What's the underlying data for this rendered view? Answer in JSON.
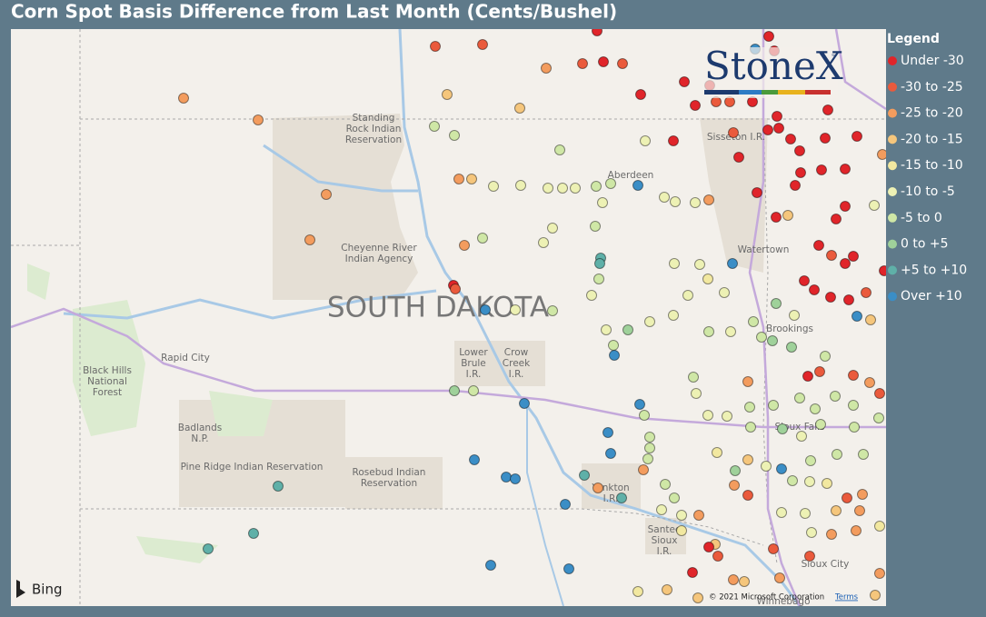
{
  "chart_data": {
    "type": "map",
    "title": "Corn Spot Basis Difference from Last Month (Cents/Bushel)",
    "logo": "StoneX",
    "logo_mark": "™",
    "attribution": "© 2021 Microsoft Corporation",
    "terms": "Terms",
    "provider": "Bing",
    "lon_range": [
      -104.78,
      -95.15
    ],
    "lat_range": [
      42.181,
      46.626
    ],
    "legend_title": "Legend",
    "classes": [
      {
        "name": "Under -30",
        "color": "#e0252a"
      },
      {
        "name": "-30 to -25",
        "color": "#ea5a3c"
      },
      {
        "name": "-25 to -20",
        "color": "#f39c5e"
      },
      {
        "name": "-20 to -15",
        "color": "#f5c67c"
      },
      {
        "name": "-15 to -10",
        "color": "#f2e8a0"
      },
      {
        "name": "-10 to -5",
        "color": "#edf1b4"
      },
      {
        "name": "-5 to 0",
        "color": "#cfe7a6"
      },
      {
        "name": "0 to +5",
        "color": "#9fd19a"
      },
      {
        "name": "+5 to +10",
        "color": "#5fb0a8"
      },
      {
        "name": "Over +10",
        "color": "#3b8ec6"
      }
    ],
    "places": [
      {
        "lines": [
          "Standing",
          "Rock Indian",
          "Reservation"
        ],
        "lon": -100.79,
        "lat": 45.856
      },
      {
        "lines": [
          "Sisseton I.R."
        ],
        "lon": -96.8,
        "lat": 45.793
      },
      {
        "lines": [
          "Aberdeen"
        ],
        "lon": -97.96,
        "lat": 45.499
      },
      {
        "lines": [
          "Cheyenne River",
          "Indian Agency"
        ],
        "lon": -100.73,
        "lat": 44.897
      },
      {
        "lines": [
          "Watertown"
        ],
        "lon": -96.5,
        "lat": 44.925
      },
      {
        "lines": [
          "Brookings"
        ],
        "lon": -96.21,
        "lat": 44.316
      },
      {
        "lines": [
          "Rapid City"
        ],
        "lon": -102.86,
        "lat": 44.092
      },
      {
        "lines": [
          "Black Hills",
          "National",
          "Forest"
        ],
        "lon": -103.72,
        "lat": 43.91
      },
      {
        "lines": [
          "Lower",
          "Brule",
          "I.R."
        ],
        "lon": -99.69,
        "lat": 44.05
      },
      {
        "lines": [
          "Crow",
          "Creek",
          "I.R."
        ],
        "lon": -99.22,
        "lat": 44.05
      },
      {
        "lines": [
          "Badlands",
          "N.P."
        ],
        "lon": -102.7,
        "lat": 43.511
      },
      {
        "lines": [
          "Pine Ridge Indian Reservation"
        ],
        "lon": -102.13,
        "lat": 43.252
      },
      {
        "lines": [
          "Rosebud Indian",
          "Reservation"
        ],
        "lon": -100.62,
        "lat": 43.168
      },
      {
        "lines": [
          "Sioux Falls"
        ],
        "lon": -96.1,
        "lat": 43.56
      },
      {
        "lines": [
          "Yankton",
          "I.R."
        ],
        "lon": -98.18,
        "lat": 43.049
      },
      {
        "lines": [
          "Santee",
          "Sioux",
          "I.R."
        ],
        "lon": -97.59,
        "lat": 42.685
      },
      {
        "lines": [
          "Sioux City"
        ],
        "lon": -95.82,
        "lat": 42.503
      },
      {
        "lines": [
          "Winnebago"
        ],
        "lon": -96.28,
        "lat": 42.216
      }
    ],
    "state_label": {
      "text": "SOUTH DAKOTA",
      "lon": -100.08,
      "lat": 44.47
    },
    "points": [
      [
        -102.88,
        46.094,
        2
      ],
      [
        -102.06,
        45.926,
        2
      ],
      [
        -101.31,
        45.352,
        2
      ],
      [
        -101.49,
        45.002,
        2
      ],
      [
        -100.11,
        46.493,
        1
      ],
      [
        -99.59,
        46.507,
        1
      ],
      [
        -98.89,
        46.325,
        2
      ],
      [
        -98.49,
        46.36,
        1
      ],
      [
        -98.26,
        46.374,
        0
      ],
      [
        -98.05,
        46.36,
        1
      ],
      [
        -98.33,
        46.612,
        0
      ],
      [
        -99.98,
        46.122,
        3
      ],
      [
        -99.18,
        46.017,
        3
      ],
      [
        -100.12,
        45.877,
        6
      ],
      [
        -99.9,
        45.807,
        6
      ],
      [
        -98.74,
        45.695,
        6
      ],
      [
        -97.8,
        45.765,
        5
      ],
      [
        -97.49,
        45.765,
        0
      ],
      [
        -97.85,
        46.122,
        0
      ],
      [
        -97.37,
        46.22,
        0
      ],
      [
        -97.09,
        46.192,
        0
      ],
      [
        -97.25,
        46.038,
        0
      ],
      [
        -97.02,
        46.066,
        1
      ],
      [
        -96.87,
        46.066,
        1
      ],
      [
        -96.62,
        46.066,
        0
      ],
      [
        -96.59,
        46.472,
        9
      ],
      [
        -96.44,
        46.57,
        0
      ],
      [
        -96.38,
        46.458,
        0
      ],
      [
        -96.45,
        45.849,
        0
      ],
      [
        -96.33,
        45.863,
        0
      ],
      [
        -96.83,
        45.828,
        1
      ],
      [
        -96.2,
        45.779,
        0
      ],
      [
        -95.82,
        45.786,
        0
      ],
      [
        -95.47,
        45.8,
        0
      ],
      [
        -95.79,
        46.003,
        0
      ],
      [
        -96.35,
        45.954,
        0
      ],
      [
        -96.1,
        45.688,
        0
      ],
      [
        -96.77,
        45.639,
        0
      ],
      [
        -96.09,
        45.52,
        0
      ],
      [
        -95.86,
        45.541,
        0
      ],
      [
        -95.6,
        45.548,
        0
      ],
      [
        -96.15,
        45.422,
        0
      ],
      [
        -96.57,
        45.366,
        0
      ],
      [
        -96.36,
        45.177,
        0
      ],
      [
        -96.23,
        45.191,
        3
      ],
      [
        -95.7,
        45.163,
        0
      ],
      [
        -95.6,
        45.261,
        0
      ],
      [
        -95.28,
        45.268,
        5
      ],
      [
        -95.89,
        44.96,
        0
      ],
      [
        -95.75,
        44.883,
        1
      ],
      [
        -95.51,
        44.876,
        0
      ],
      [
        -95.6,
        44.82,
        0
      ],
      [
        -95.17,
        44.764,
        0
      ],
      [
        -96.05,
        44.687,
        0
      ],
      [
        -95.94,
        44.617,
        0
      ],
      [
        -95.76,
        44.561,
        0
      ],
      [
        -95.56,
        44.54,
        0
      ],
      [
        -95.37,
        44.596,
        1
      ],
      [
        -95.47,
        44.414,
        9
      ],
      [
        -95.32,
        44.386,
        3
      ],
      [
        -99.85,
        45.471,
        2
      ],
      [
        -99.71,
        45.471,
        3
      ],
      [
        -99.47,
        45.415,
        5
      ],
      [
        -99.17,
        45.422,
        5
      ],
      [
        -98.87,
        45.401,
        5
      ],
      [
        -98.71,
        45.401,
        5
      ],
      [
        -98.57,
        45.401,
        5
      ],
      [
        -98.34,
        45.415,
        6
      ],
      [
        -98.18,
        45.436,
        6
      ],
      [
        -97.88,
        45.422,
        9
      ],
      [
        -98.27,
        45.289,
        5
      ],
      [
        -97.59,
        45.331,
        5
      ],
      [
        -97.47,
        45.296,
        5
      ],
      [
        -97.25,
        45.289,
        5
      ],
      [
        -97.1,
        45.31,
        2
      ],
      [
        -98.35,
        45.107,
        6
      ],
      [
        -98.82,
        45.093,
        5
      ],
      [
        -98.92,
        44.981,
        5
      ],
      [
        -99.59,
        45.016,
        6
      ],
      [
        -99.79,
        44.96,
        2
      ],
      [
        -98.29,
        44.862,
        8
      ],
      [
        -98.3,
        44.82,
        8
      ],
      [
        -98.31,
        44.701,
        6
      ],
      [
        -98.39,
        44.575,
        5
      ],
      [
        -99.91,
        44.652,
        0
      ],
      [
        -99.89,
        44.624,
        1
      ],
      [
        -99.56,
        44.463,
        9
      ],
      [
        -99.23,
        44.463,
        5
      ],
      [
        -98.82,
        44.456,
        6
      ],
      [
        -97.48,
        44.82,
        5
      ],
      [
        -97.2,
        44.813,
        5
      ],
      [
        -96.84,
        44.82,
        9
      ],
      [
        -97.11,
        44.701,
        4
      ],
      [
        -96.93,
        44.596,
        5
      ],
      [
        -97.33,
        44.575,
        5
      ],
      [
        -97.49,
        44.421,
        5
      ],
      [
        -97.75,
        44.372,
        5
      ],
      [
        -97.99,
        44.309,
        7
      ],
      [
        -98.23,
        44.309,
        5
      ],
      [
        -98.15,
        44.19,
        6
      ],
      [
        -98.14,
        44.113,
        9
      ],
      [
        -96.36,
        44.512,
        7
      ],
      [
        -96.16,
        44.421,
        5
      ],
      [
        -96.61,
        44.372,
        6
      ],
      [
        -96.86,
        44.295,
        5
      ],
      [
        -97.1,
        44.295,
        6
      ],
      [
        -96.52,
        44.253,
        6
      ],
      [
        -96.4,
        44.225,
        7
      ],
      [
        -96.19,
        44.176,
        7
      ],
      [
        -95.82,
        44.106,
        6
      ],
      [
        -96.01,
        43.952,
        0
      ],
      [
        -95.88,
        43.987,
        1
      ],
      [
        -95.51,
        43.959,
        1
      ],
      [
        -95.33,
        43.903,
        2
      ],
      [
        -95.22,
        43.819,
        1
      ],
      [
        -96.67,
        43.91,
        2
      ],
      [
        -97.27,
        43.945,
        6
      ],
      [
        -97.24,
        43.819,
        5
      ],
      [
        -97.11,
        43.651,
        5
      ],
      [
        -96.9,
        43.644,
        5
      ],
      [
        -96.65,
        43.714,
        6
      ],
      [
        -96.39,
        43.728,
        6
      ],
      [
        -96.1,
        43.784,
        6
      ],
      [
        -95.93,
        43.7,
        6
      ],
      [
        -95.71,
        43.798,
        6
      ],
      [
        -95.51,
        43.728,
        6
      ],
      [
        -96.64,
        43.56,
        6
      ],
      [
        -96.29,
        43.546,
        7
      ],
      [
        -96.08,
        43.49,
        5
      ],
      [
        -95.87,
        43.581,
        6
      ],
      [
        -95.5,
        43.56,
        6
      ],
      [
        -95.23,
        43.63,
        6
      ],
      [
        -99.9,
        43.84,
        7
      ],
      [
        -99.69,
        43.84,
        6
      ],
      [
        -99.13,
        43.742,
        9
      ],
      [
        -97.86,
        43.735,
        9
      ],
      [
        -97.81,
        43.651,
        6
      ],
      [
        -98.21,
        43.518,
        9
      ],
      [
        -98.18,
        43.357,
        9
      ],
      [
        -97.75,
        43.483,
        6
      ],
      [
        -97.75,
        43.399,
        6
      ],
      [
        -97.77,
        43.315,
        6
      ],
      [
        -97.82,
        43.231,
        2
      ],
      [
        -97.01,
        43.364,
        4
      ],
      [
        -96.67,
        43.308,
        3
      ],
      [
        -96.81,
        43.224,
        7
      ],
      [
        -96.82,
        43.112,
        2
      ],
      [
        -96.67,
        43.035,
        1
      ],
      [
        -96.47,
        43.259,
        5
      ],
      [
        -96.3,
        43.238,
        9
      ],
      [
        -96.18,
        43.147,
        6
      ],
      [
        -95.99,
        43.14,
        5
      ],
      [
        -95.8,
        43.126,
        4
      ],
      [
        -95.58,
        43.014,
        1
      ],
      [
        -95.41,
        43.042,
        2
      ],
      [
        -95.98,
        43.301,
        6
      ],
      [
        -95.69,
        43.35,
        6
      ],
      [
        -95.4,
        43.35,
        6
      ],
      [
        -99.68,
        43.308,
        9
      ],
      [
        -99.33,
        43.175,
        9
      ],
      [
        -99.23,
        43.161,
        9
      ],
      [
        -98.47,
        43.189,
        8
      ],
      [
        -98.68,
        42.965,
        9
      ],
      [
        -98.32,
        43.091,
        2
      ],
      [
        -98.06,
        43.014,
        8
      ],
      [
        -97.58,
        43.119,
        6
      ],
      [
        -97.48,
        43.014,
        6
      ],
      [
        -97.62,
        42.923,
        5
      ],
      [
        -97.4,
        42.881,
        5
      ],
      [
        -97.21,
        42.881,
        2
      ],
      [
        -97.4,
        42.762,
        4
      ],
      [
        -97.03,
        42.657,
        3
      ],
      [
        -97.1,
        42.636,
        0
      ],
      [
        -97.0,
        42.566,
        1
      ],
      [
        -97.28,
        42.44,
        0
      ],
      [
        -96.83,
        42.384,
        2
      ],
      [
        -96.71,
        42.37,
        3
      ],
      [
        -97.56,
        42.307,
        3
      ],
      [
        -97.88,
        42.293,
        4
      ],
      [
        -97.22,
        42.244,
        3
      ],
      [
        -96.39,
        42.622,
        1
      ],
      [
        -96.32,
        42.398,
        2
      ],
      [
        -95.99,
        42.566,
        1
      ],
      [
        -95.75,
        42.734,
        2
      ],
      [
        -95.48,
        42.762,
        2
      ],
      [
        -95.22,
        42.797,
        4
      ],
      [
        -95.97,
        42.748,
        5
      ],
      [
        -96.3,
        42.902,
        5
      ],
      [
        -96.04,
        42.895,
        5
      ],
      [
        -95.7,
        42.916,
        3
      ],
      [
        -95.44,
        42.916,
        2
      ],
      [
        -95.22,
        42.433,
        2
      ],
      [
        -95.27,
        42.265,
        3
      ],
      [
        -101.84,
        43.105,
        8
      ],
      [
        -102.11,
        42.741,
        8
      ],
      [
        -102.61,
        42.622,
        8
      ],
      [
        -99.5,
        42.496,
        9
      ],
      [
        -98.64,
        42.468,
        9
      ],
      [
        -95.19,
        45.66,
        2
      ]
    ]
  }
}
